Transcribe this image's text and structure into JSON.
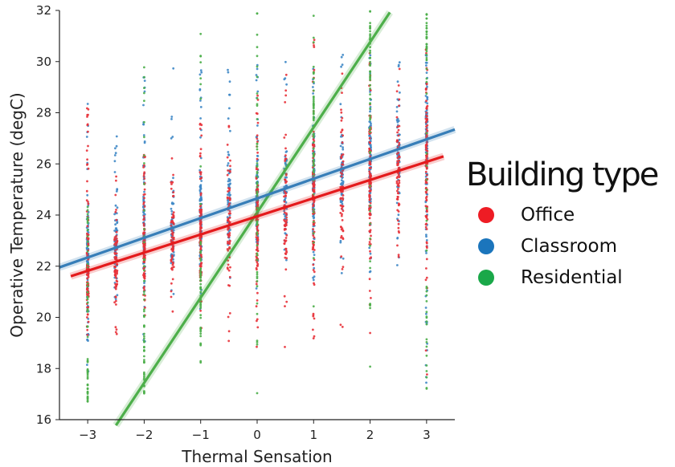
{
  "chart_data": {
    "type": "scatter",
    "xlabel": "Thermal Sensation",
    "ylabel": "Operative Temperature (degC)",
    "xlim": [
      -3.5,
      3.5
    ],
    "ylim": [
      16,
      32
    ],
    "xticks": [
      -3,
      -2,
      -1,
      0,
      1,
      2,
      3
    ],
    "xtick_labels": [
      "−3",
      "−2",
      "−1",
      "0",
      "1",
      "2",
      "3"
    ],
    "yticks": [
      16,
      18,
      20,
      22,
      24,
      26,
      28,
      30,
      32
    ],
    "grid": false,
    "legend": {
      "title": "Building type",
      "placement": "right",
      "entries": [
        {
          "label": "Office",
          "color": "#e41a1c"
        },
        {
          "label": "Classroom",
          "color": "#377eb8"
        },
        {
          "label": "Residential",
          "color": "#4daf4a"
        }
      ]
    },
    "series": [
      {
        "name": "Office",
        "color": "#e41a1c",
        "marker_color": "#e8323a",
        "regression": {
          "slope": 0.71,
          "intercept": 23.95,
          "x_range": [
            -3.3,
            3.3
          ]
        },
        "spread": [
          [
            -3,
            18.8,
            28.6
          ],
          [
            -2.5,
            19.2,
            26.0
          ],
          [
            -2,
            20.0,
            26.9
          ],
          [
            -1.5,
            20.2,
            26.9
          ],
          [
            -1,
            19.5,
            27.7
          ],
          [
            -0.5,
            18.8,
            28.6
          ],
          [
            0,
            18.5,
            29.0
          ],
          [
            0.5,
            18.6,
            29.9
          ],
          [
            1,
            18.3,
            31.0
          ],
          [
            1.5,
            19.4,
            30.2
          ],
          [
            2,
            19.3,
            31.0
          ],
          [
            2.5,
            20.8,
            30.4
          ],
          [
            3,
            17.5,
            30.5
          ]
        ]
      },
      {
        "name": "Classroom",
        "color": "#377eb8",
        "marker_color": "#3f88c7",
        "regression": {
          "slope": 0.77,
          "intercept": 24.65,
          "x_range": [
            -3.5,
            3.5
          ]
        },
        "spread": [
          [
            -3,
            17.6,
            28.8
          ],
          [
            -2.5,
            20.7,
            27.1
          ],
          [
            -2,
            18.7,
            30.0
          ],
          [
            -1.5,
            20.9,
            30.0
          ],
          [
            -1,
            20.3,
            29.9
          ],
          [
            -0.5,
            20.5,
            30.0
          ],
          [
            0,
            20.7,
            30.2
          ],
          [
            0.5,
            21.6,
            30.2
          ],
          [
            1,
            21.3,
            30.3
          ],
          [
            1.5,
            21.7,
            30.4
          ],
          [
            2,
            21.4,
            30.5
          ],
          [
            2.5,
            21.6,
            30.5
          ],
          [
            3,
            17.2,
            30.8
          ]
        ]
      },
      {
        "name": "Residential",
        "color": "#4daf4a",
        "marker_color": "#4daf4a",
        "regression": {
          "slope": 3.33,
          "intercept": 24.1,
          "x_range": [
            -2.5,
            2.35
          ]
        },
        "spread": [
          [
            -3,
            16.7,
            24.4
          ],
          [
            -2,
            17.0,
            30.0
          ],
          [
            -1,
            18.2,
            32.0
          ],
          [
            0,
            16.5,
            32.0
          ],
          [
            1,
            17.5,
            32.0
          ],
          [
            2,
            16.8,
            32.0
          ],
          [
            3,
            16.9,
            32.0
          ]
        ]
      }
    ]
  }
}
